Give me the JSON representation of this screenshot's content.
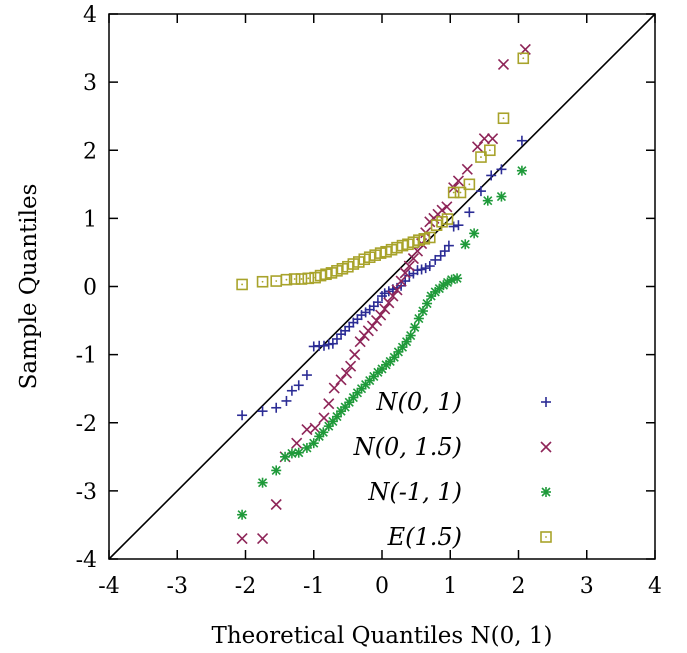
{
  "chart_data": {
    "type": "scatter",
    "xlabel": "Theoretical Quantiles N(0, 1)",
    "ylabel": "Sample Quantiles",
    "xlim": [
      -4,
      4
    ],
    "ylim": [
      -4,
      4
    ],
    "xticks": [
      "-4",
      "-3",
      "-2",
      "-1",
      "0",
      "1",
      "2",
      "3",
      "4"
    ],
    "yticks": [
      "-4",
      "-3",
      "-2",
      "-1",
      "0",
      "1",
      "2",
      "3",
      "4"
    ],
    "reference_line": [
      [
        -4,
        -4
      ],
      [
        4,
        4
      ]
    ],
    "legend_position": "bottom-right",
    "series": [
      {
        "name": "N(0, 1)",
        "marker": "plus",
        "color": "#2b2c95",
        "points": [
          [
            -2.05,
            -1.89
          ],
          [
            -1.75,
            -1.83
          ],
          [
            -1.55,
            -1.78
          ],
          [
            -1.4,
            -1.68
          ],
          [
            -1.32,
            -1.53
          ],
          [
            -1.22,
            -1.45
          ],
          [
            -1.1,
            -1.3
          ],
          [
            -1.0,
            -0.88
          ],
          [
            -0.92,
            -0.87
          ],
          [
            -0.85,
            -0.87
          ],
          [
            -0.78,
            -0.85
          ],
          [
            -0.72,
            -0.84
          ],
          [
            -0.66,
            -0.77
          ],
          [
            -0.6,
            -0.7
          ],
          [
            -0.54,
            -0.65
          ],
          [
            -0.48,
            -0.59
          ],
          [
            -0.42,
            -0.53
          ],
          [
            -0.36,
            -0.48
          ],
          [
            -0.3,
            -0.42
          ],
          [
            -0.24,
            -0.38
          ],
          [
            -0.18,
            -0.34
          ],
          [
            -0.12,
            -0.29
          ],
          [
            -0.06,
            -0.23
          ],
          [
            0.0,
            -0.14
          ],
          [
            0.04,
            -0.1
          ],
          [
            0.1,
            -0.07
          ],
          [
            0.16,
            -0.04
          ],
          [
            0.22,
            -0.02
          ],
          [
            0.28,
            0.01
          ],
          [
            0.34,
            0.08
          ],
          [
            0.4,
            0.16
          ],
          [
            0.46,
            0.19
          ],
          [
            0.52,
            0.24
          ],
          [
            0.58,
            0.25
          ],
          [
            0.64,
            0.27
          ],
          [
            0.7,
            0.3
          ],
          [
            0.78,
            0.39
          ],
          [
            0.86,
            0.45
          ],
          [
            0.92,
            0.52
          ],
          [
            0.98,
            0.6
          ],
          [
            1.05,
            0.88
          ],
          [
            1.12,
            0.9
          ],
          [
            1.28,
            1.09
          ],
          [
            1.45,
            1.4
          ],
          [
            1.6,
            1.63
          ],
          [
            1.75,
            1.72
          ],
          [
            2.05,
            2.14
          ]
        ]
      },
      {
        "name": "N(0, 1.5)",
        "marker": "cross",
        "color": "#8e2558",
        "points": [
          [
            -2.05,
            -3.7
          ],
          [
            -1.75,
            -3.7
          ],
          [
            -1.55,
            -3.2
          ],
          [
            -1.42,
            -2.5
          ],
          [
            -1.25,
            -2.3
          ],
          [
            -1.1,
            -2.1
          ],
          [
            -0.98,
            -2.08
          ],
          [
            -0.85,
            -1.93
          ],
          [
            -0.78,
            -1.72
          ],
          [
            -0.7,
            -1.49
          ],
          [
            -0.6,
            -1.37
          ],
          [
            -0.52,
            -1.27
          ],
          [
            -0.46,
            -1.17
          ],
          [
            -0.4,
            -1.0
          ],
          [
            -0.32,
            -0.81
          ],
          [
            -0.26,
            -0.72
          ],
          [
            -0.2,
            -0.65
          ],
          [
            -0.14,
            -0.58
          ],
          [
            -0.08,
            -0.5
          ],
          [
            -0.02,
            -0.42
          ],
          [
            0.04,
            -0.33
          ],
          [
            0.1,
            -0.24
          ],
          [
            0.16,
            -0.14
          ],
          [
            0.22,
            -0.05
          ],
          [
            0.28,
            0.08
          ],
          [
            0.34,
            0.2
          ],
          [
            0.4,
            0.3
          ],
          [
            0.46,
            0.41
          ],
          [
            0.52,
            0.52
          ],
          [
            0.58,
            0.63
          ],
          [
            0.64,
            0.79
          ],
          [
            0.7,
            0.95
          ],
          [
            0.76,
            1.0
          ],
          [
            0.82,
            1.06
          ],
          [
            0.88,
            1.12
          ],
          [
            0.95,
            1.17
          ],
          [
            1.05,
            1.45
          ],
          [
            1.12,
            1.55
          ],
          [
            1.25,
            1.72
          ],
          [
            1.4,
            2.05
          ],
          [
            1.5,
            2.17
          ],
          [
            1.62,
            2.17
          ],
          [
            1.78,
            3.26
          ],
          [
            2.1,
            3.48
          ]
        ]
      },
      {
        "name": "N(-1, 1)",
        "marker": "star",
        "color": "#1f9a3a",
        "points": [
          [
            -2.05,
            -3.35
          ],
          [
            -1.75,
            -2.88
          ],
          [
            -1.55,
            -2.7
          ],
          [
            -1.42,
            -2.5
          ],
          [
            -1.32,
            -2.45
          ],
          [
            -1.22,
            -2.44
          ],
          [
            -1.1,
            -2.37
          ],
          [
            -1.0,
            -2.3
          ],
          [
            -0.92,
            -2.2
          ],
          [
            -0.86,
            -2.14
          ],
          [
            -0.78,
            -2.05
          ],
          [
            -0.72,
            -1.98
          ],
          [
            -0.66,
            -1.91
          ],
          [
            -0.6,
            -1.83
          ],
          [
            -0.54,
            -1.77
          ],
          [
            -0.48,
            -1.7
          ],
          [
            -0.42,
            -1.63
          ],
          [
            -0.36,
            -1.56
          ],
          [
            -0.3,
            -1.5
          ],
          [
            -0.24,
            -1.44
          ],
          [
            -0.18,
            -1.38
          ],
          [
            -0.12,
            -1.32
          ],
          [
            -0.06,
            -1.26
          ],
          [
            0.0,
            -1.21
          ],
          [
            0.06,
            -1.15
          ],
          [
            0.12,
            -1.1
          ],
          [
            0.18,
            -1.04
          ],
          [
            0.24,
            -0.96
          ],
          [
            0.3,
            -0.89
          ],
          [
            0.36,
            -0.81
          ],
          [
            0.42,
            -0.72
          ],
          [
            0.48,
            -0.6
          ],
          [
            0.54,
            -0.47
          ],
          [
            0.6,
            -0.36
          ],
          [
            0.66,
            -0.25
          ],
          [
            0.72,
            -0.14
          ],
          [
            0.78,
            -0.08
          ],
          [
            0.84,
            -0.03
          ],
          [
            0.9,
            0.02
          ],
          [
            0.96,
            0.06
          ],
          [
            1.02,
            0.1
          ],
          [
            1.1,
            0.12
          ],
          [
            1.22,
            0.62
          ],
          [
            1.35,
            0.78
          ],
          [
            1.55,
            1.26
          ],
          [
            1.75,
            1.32
          ],
          [
            2.05,
            1.7
          ]
        ]
      },
      {
        "name": "E(1.5)",
        "marker": "square",
        "color": "#a8a32b",
        "points": [
          [
            -2.05,
            0.03
          ],
          [
            -1.75,
            0.07
          ],
          [
            -1.55,
            0.08
          ],
          [
            -1.4,
            0.1
          ],
          [
            -1.28,
            0.11
          ],
          [
            -1.18,
            0.11
          ],
          [
            -1.08,
            0.12
          ],
          [
            -0.98,
            0.13
          ],
          [
            -0.9,
            0.16
          ],
          [
            -0.82,
            0.18
          ],
          [
            -0.74,
            0.2
          ],
          [
            -0.66,
            0.23
          ],
          [
            -0.58,
            0.26
          ],
          [
            -0.5,
            0.29
          ],
          [
            -0.42,
            0.33
          ],
          [
            -0.34,
            0.36
          ],
          [
            -0.26,
            0.4
          ],
          [
            -0.18,
            0.43
          ],
          [
            -0.1,
            0.46
          ],
          [
            -0.02,
            0.49
          ],
          [
            0.06,
            0.51
          ],
          [
            0.14,
            0.54
          ],
          [
            0.22,
            0.57
          ],
          [
            0.3,
            0.6
          ],
          [
            0.38,
            0.62
          ],
          [
            0.46,
            0.65
          ],
          [
            0.54,
            0.68
          ],
          [
            0.62,
            0.7
          ],
          [
            0.7,
            0.72
          ],
          [
            0.8,
            0.9
          ],
          [
            0.88,
            0.95
          ],
          [
            0.96,
            0.99
          ],
          [
            1.05,
            1.38
          ],
          [
            1.15,
            1.38
          ],
          [
            1.28,
            1.5
          ],
          [
            1.45,
            1.9
          ],
          [
            1.58,
            2.0
          ],
          [
            1.78,
            2.47
          ],
          [
            2.07,
            3.35
          ]
        ]
      }
    ]
  }
}
